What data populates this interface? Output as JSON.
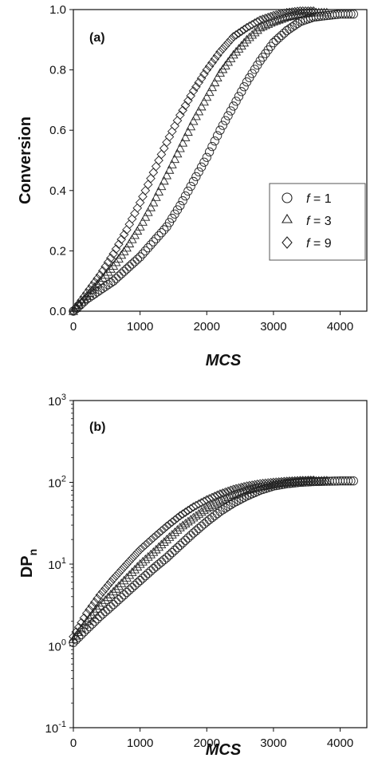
{
  "chart_data": [
    {
      "type": "scatter",
      "panel_label": "(a)",
      "xlabel": "MCS",
      "ylabel": "Conversion",
      "xlim": [
        0,
        4400
      ],
      "ylim": [
        0,
        1
      ],
      "xticks": [
        "0",
        "1000",
        "2000",
        "3000",
        "4000"
      ],
      "yticks": [
        "0.0",
        "0.2",
        "0.4",
        "0.6",
        "0.8",
        "1.0"
      ],
      "legend": {
        "position": "center-right"
      },
      "series": [
        {
          "name": "f = 1",
          "f_value": "1",
          "marker": "circle",
          "x": [
            0,
            200,
            400,
            600,
            800,
            1000,
            1200,
            1400,
            1600,
            1800,
            2000,
            2200,
            2400,
            2600,
            2800,
            3000,
            3200,
            3400,
            3600,
            3800,
            4000,
            4200
          ],
          "y": [
            0.0,
            0.04,
            0.07,
            0.1,
            0.14,
            0.18,
            0.23,
            0.28,
            0.35,
            0.43,
            0.51,
            0.6,
            0.68,
            0.76,
            0.83,
            0.89,
            0.93,
            0.96,
            0.975,
            0.98,
            0.985,
            0.985
          ]
        },
        {
          "name": "f = 3",
          "f_value": "3",
          "marker": "triangle",
          "x": [
            0,
            200,
            400,
            600,
            800,
            1000,
            1200,
            1400,
            1600,
            1800,
            2000,
            2200,
            2400,
            2600,
            2800,
            3000,
            3200,
            3400,
            3600,
            3800
          ],
          "y": [
            0.0,
            0.05,
            0.1,
            0.15,
            0.21,
            0.28,
            0.36,
            0.45,
            0.54,
            0.63,
            0.71,
            0.79,
            0.85,
            0.9,
            0.94,
            0.96,
            0.975,
            0.985,
            0.99,
            0.99
          ]
        },
        {
          "name": "f = 9",
          "f_value": "9",
          "marker": "diamond",
          "x": [
            0,
            200,
            400,
            600,
            800,
            1000,
            1200,
            1400,
            1600,
            1800,
            2000,
            2200,
            2400,
            2600,
            2800,
            3000,
            3200,
            3400,
            3600
          ],
          "y": [
            0.0,
            0.06,
            0.12,
            0.19,
            0.27,
            0.36,
            0.46,
            0.56,
            0.65,
            0.73,
            0.8,
            0.86,
            0.91,
            0.94,
            0.965,
            0.98,
            0.99,
            0.995,
            0.995
          ]
        }
      ]
    },
    {
      "type": "scatter",
      "panel_label": "(b)",
      "xlabel": "MCS",
      "ylabel": "DP",
      "ylabel_sub": "n",
      "xlim": [
        0,
        4400
      ],
      "ylim": [
        0.1,
        1000
      ],
      "yscale": "log",
      "xticks": [
        "0",
        "1000",
        "2000",
        "3000",
        "4000"
      ],
      "yticks": [
        {
          "base": "10",
          "exp": "-1"
        },
        {
          "base": "10",
          "exp": "0"
        },
        {
          "base": "10",
          "exp": "1"
        },
        {
          "base": "10",
          "exp": "2"
        },
        {
          "base": "10",
          "exp": "3"
        }
      ],
      "series": [
        {
          "name": "f = 1",
          "marker": "circle",
          "x": [
            0,
            200,
            400,
            600,
            800,
            1000,
            1200,
            1400,
            1600,
            1800,
            2000,
            2200,
            2400,
            2600,
            2800,
            3000,
            3200,
            3400,
            3600,
            3800,
            4000,
            4200
          ],
          "y": [
            1.1,
            1.6,
            2.3,
            3.2,
            4.5,
            6.3,
            8.8,
            12,
            17,
            24,
            33,
            44,
            56,
            68,
            80,
            90,
            96,
            100,
            102,
            103,
            104,
            104
          ]
        },
        {
          "name": "f = 3",
          "marker": "triangle",
          "x": [
            0,
            200,
            400,
            600,
            800,
            1000,
            1200,
            1400,
            1600,
            1800,
            2000,
            2200,
            2400,
            2600,
            2800,
            3000,
            3200,
            3400,
            3600,
            3800
          ],
          "y": [
            1.2,
            2.0,
            3.1,
            4.6,
            6.8,
            10,
            14,
            20,
            28,
            37,
            48,
            59,
            70,
            80,
            88,
            95,
            99,
            102,
            104,
            105
          ]
        },
        {
          "name": "f = 9",
          "marker": "diamond",
          "x": [
            0,
            200,
            400,
            600,
            800,
            1000,
            1200,
            1400,
            1600,
            1800,
            2000,
            2200,
            2400,
            2600,
            2800,
            3000,
            3200,
            3400,
            3600
          ],
          "y": [
            1.3,
            2.5,
            4.2,
            6.6,
            10,
            15,
            21,
            29,
            39,
            50,
            61,
            72,
            82,
            90,
            96,
            100,
            103,
            105,
            106
          ]
        }
      ]
    }
  ]
}
